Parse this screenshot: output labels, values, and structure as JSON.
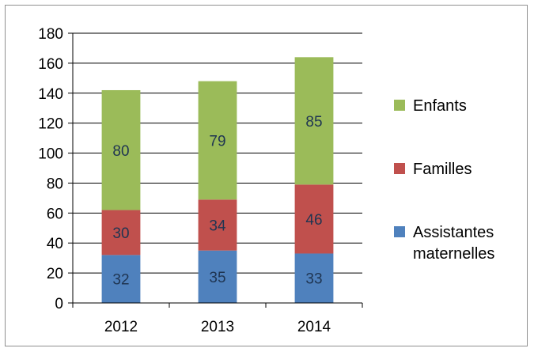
{
  "chart_data": {
    "type": "bar",
    "stacked": true,
    "categories": [
      "2012",
      "2013",
      "2014"
    ],
    "series": [
      {
        "name": "Assistantes maternelles",
        "values": [
          32,
          35,
          33
        ],
        "color": "#4f81bd",
        "labels": [
          "32",
          "35",
          "33"
        ]
      },
      {
        "name": "Familles",
        "values": [
          30,
          34,
          46
        ],
        "color": "#c0504d",
        "labels": [
          "30",
          "34",
          "46"
        ]
      },
      {
        "name": "Enfants",
        "values": [
          80,
          79,
          85
        ],
        "color": "#9bbb59",
        "labels": [
          "80",
          "79",
          "85"
        ]
      }
    ],
    "ylim": [
      0,
      180
    ],
    "yticks": [
      "0",
      "20",
      "40",
      "60",
      "80",
      "100",
      "120",
      "140",
      "160",
      "180"
    ],
    "grid": true,
    "legend_position": "right",
    "legend": [
      {
        "label": "Enfants",
        "color": "#9bbb59",
        "lines": [
          "Enfants"
        ]
      },
      {
        "label": "Familles",
        "color": "#c0504d",
        "lines": [
          "Familles"
        ]
      },
      {
        "label": "Assistantes maternelles",
        "color": "#4f81bd",
        "lines": [
          "Assistantes",
          "maternelles"
        ]
      }
    ]
  }
}
